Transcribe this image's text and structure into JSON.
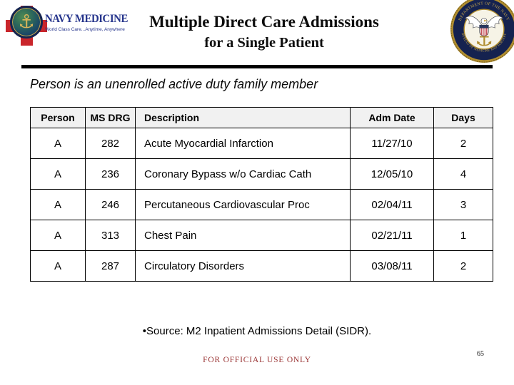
{
  "header": {
    "logo": {
      "name": "NAVY MEDICINE",
      "tagline": "World Class Care...Anytime, Anywhere"
    },
    "title_line1": "Multiple Direct Care Admissions",
    "title_line2": "for a Single Patient",
    "seal": {
      "top_text": "DEPARTMENT OF THE NAVY",
      "bottom_text": "BUREAU OF MEDICINE AND SURGERY"
    }
  },
  "subtitle": "Person is an unenrolled active duty family member",
  "table": {
    "columns": [
      "Person",
      "MS DRG",
      "Description",
      "Adm Date",
      "Days"
    ],
    "rows": [
      [
        "A",
        "282",
        "Acute Myocardial Infarction",
        "11/27/10",
        "2"
      ],
      [
        "A",
        "236",
        "Coronary Bypass w/o Cardiac Cath",
        "12/05/10",
        "4"
      ],
      [
        "A",
        "246",
        "Percutaneous Cardiovascular Proc",
        "02/04/11",
        "3"
      ],
      [
        "A",
        "313",
        "Chest Pain",
        "02/21/11",
        "1"
      ],
      [
        "A",
        "287",
        "Circulatory Disorders",
        "03/08/11",
        "2"
      ]
    ]
  },
  "footer": {
    "source": "•Source:  M2 Inpatient Admissions Detail (SIDR).",
    "classification": "FOR OFFICIAL USE ONLY",
    "page_number": "65"
  },
  "colors": {
    "logo_blue": "#26358c",
    "cross_red": "#c9252b",
    "seal_navy": "#15224f",
    "seal_gold": "#b08d2f",
    "classification_red": "#9a3434",
    "table_header_bg": "#f1f1f1"
  }
}
